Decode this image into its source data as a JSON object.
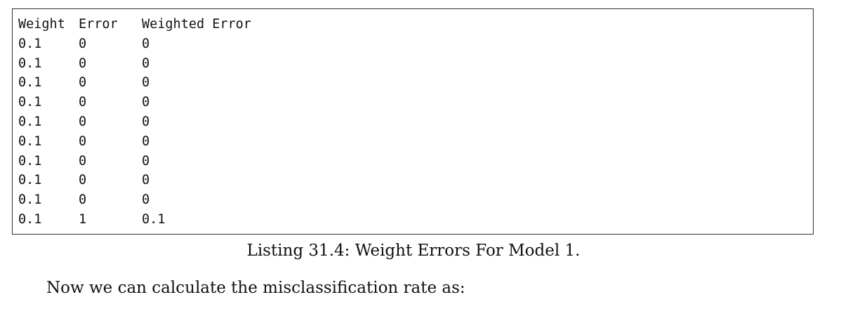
{
  "listing": {
    "headers": [
      "Weight",
      "Error",
      "Weighted Error"
    ],
    "rows": [
      [
        "0.1",
        "0",
        "0"
      ],
      [
        "0.1",
        "0",
        "0"
      ],
      [
        "0.1",
        "0",
        "0"
      ],
      [
        "0.1",
        "0",
        "0"
      ],
      [
        "0.1",
        "0",
        "0"
      ],
      [
        "0.1",
        "0",
        "0"
      ],
      [
        "0.1",
        "0",
        "0"
      ],
      [
        "0.1",
        "0",
        "0"
      ],
      [
        "0.1",
        "0",
        "0"
      ],
      [
        "0.1",
        "1",
        "0.1"
      ]
    ],
    "caption": "Listing 31.4: Weight Errors For Model 1."
  },
  "body_text": {
    "paragraph": "Now we can calculate the misclassification rate as:"
  }
}
